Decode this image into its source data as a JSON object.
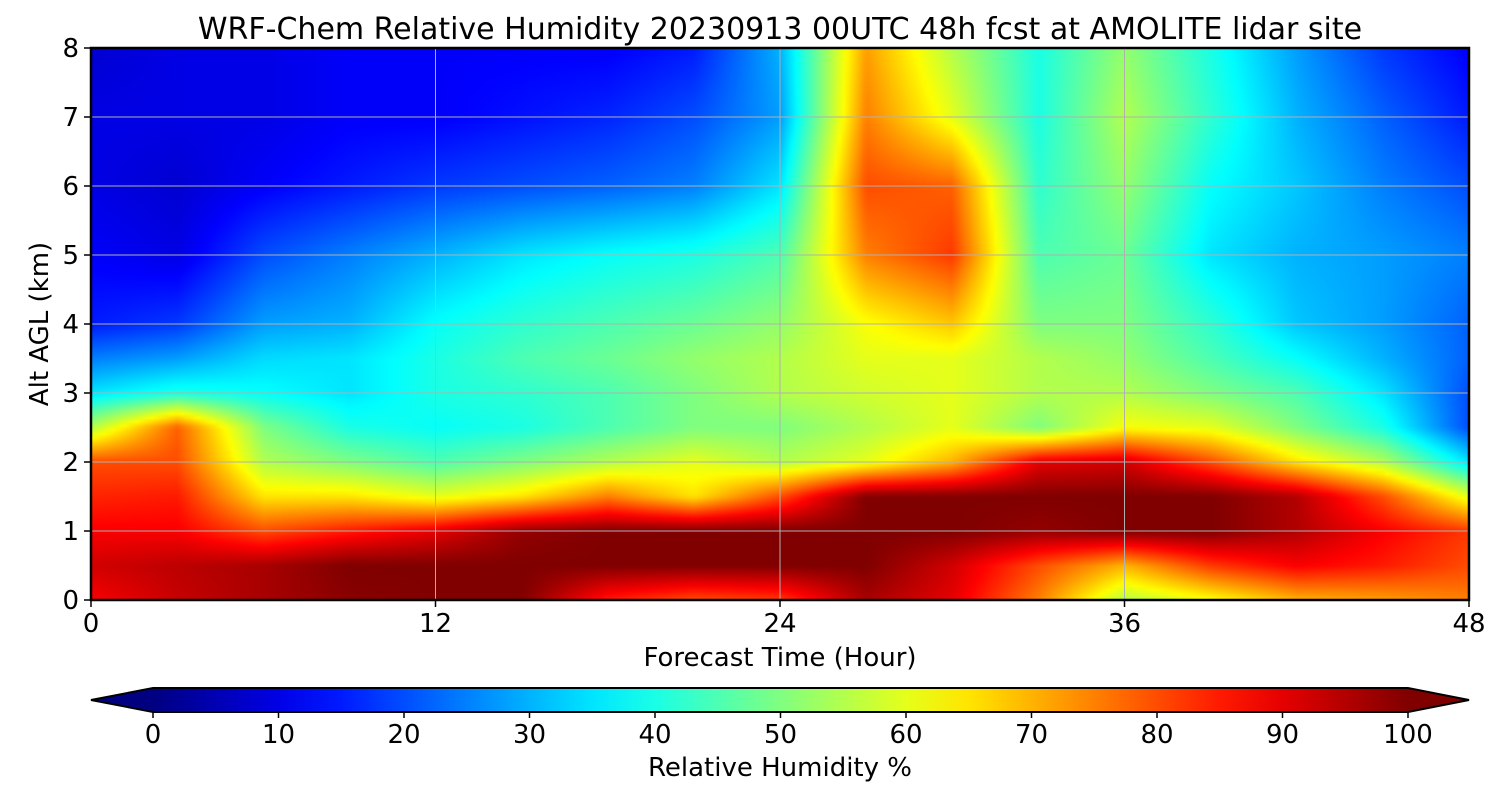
{
  "chart_data": {
    "type": "heatmap",
    "title": "WRF-Chem Relative Humidity 20230913 00UTC 48h fcst at AMOLITE lidar site",
    "xlabel": "Forecast Time (Hour)",
    "ylabel": "Alt AGL (km)",
    "xlim": [
      0,
      48
    ],
    "ylim": [
      0,
      8
    ],
    "xticks": [
      0,
      12,
      24,
      36,
      48
    ],
    "yticks": [
      0,
      1,
      2,
      3,
      4,
      5,
      6,
      7,
      8
    ],
    "grid": true,
    "colormap": "jet",
    "colorbar": {
      "label": "Relative Humidity %",
      "orientation": "horizontal",
      "range": [
        0,
        100
      ],
      "ticks": [
        0,
        10,
        20,
        30,
        40,
        50,
        60,
        70,
        80,
        90,
        100
      ],
      "extend": "both"
    },
    "x": [
      0,
      3,
      6,
      9,
      12,
      15,
      18,
      21,
      24,
      27,
      30,
      33,
      36,
      39,
      42,
      45,
      48
    ],
    "y": [
      0,
      0.5,
      1,
      1.5,
      2,
      2.5,
      3,
      3.5,
      4,
      5,
      6,
      7,
      8
    ],
    "z": [
      [
        88,
        93,
        96,
        99,
        100,
        100,
        85,
        80,
        82,
        96,
        90,
        75,
        55,
        62,
        70,
        72,
        75
      ],
      [
        92,
        94,
        96,
        100,
        100,
        100,
        100,
        100,
        100,
        100,
        92,
        80,
        70,
        82,
        88,
        85,
        80
      ],
      [
        88,
        88,
        80,
        85,
        90,
        98,
        100,
        100,
        100,
        100,
        100,
        98,
        100,
        100,
        95,
        88,
        82
      ],
      [
        84,
        85,
        65,
        65,
        60,
        65,
        75,
        65,
        80,
        100,
        100,
        100,
        100,
        100,
        95,
        80,
        60
      ],
      [
        80,
        80,
        55,
        50,
        45,
        50,
        55,
        60,
        55,
        60,
        70,
        90,
        92,
        80,
        65,
        55,
        35
      ],
      [
        55,
        78,
        50,
        40,
        38,
        40,
        45,
        50,
        50,
        55,
        60,
        50,
        62,
        60,
        50,
        40,
        20
      ],
      [
        35,
        40,
        38,
        35,
        40,
        42,
        45,
        50,
        55,
        58,
        60,
        55,
        55,
        50,
        45,
        35,
        20
      ],
      [
        25,
        28,
        34,
        35,
        40,
        45,
        48,
        52,
        55,
        60,
        60,
        55,
        52,
        45,
        38,
        30,
        22
      ],
      [
        15,
        18,
        28,
        30,
        38,
        42,
        45,
        48,
        52,
        62,
        68,
        50,
        50,
        42,
        32,
        28,
        22
      ],
      [
        12,
        10,
        20,
        25,
        30,
        35,
        38,
        40,
        45,
        75,
        82,
        45,
        48,
        35,
        30,
        28,
        25
      ],
      [
        10,
        8,
        12,
        15,
        18,
        20,
        22,
        25,
        35,
        80,
        78,
        42,
        52,
        38,
        32,
        25,
        20
      ],
      [
        10,
        10,
        10,
        12,
        12,
        14,
        16,
        20,
        28,
        75,
        60,
        40,
        55,
        42,
        30,
        22,
        15
      ],
      [
        8,
        10,
        10,
        12,
        12,
        12,
        12,
        15,
        30,
        72,
        55,
        40,
        52,
        40,
        28,
        18,
        12
      ]
    ]
  }
}
